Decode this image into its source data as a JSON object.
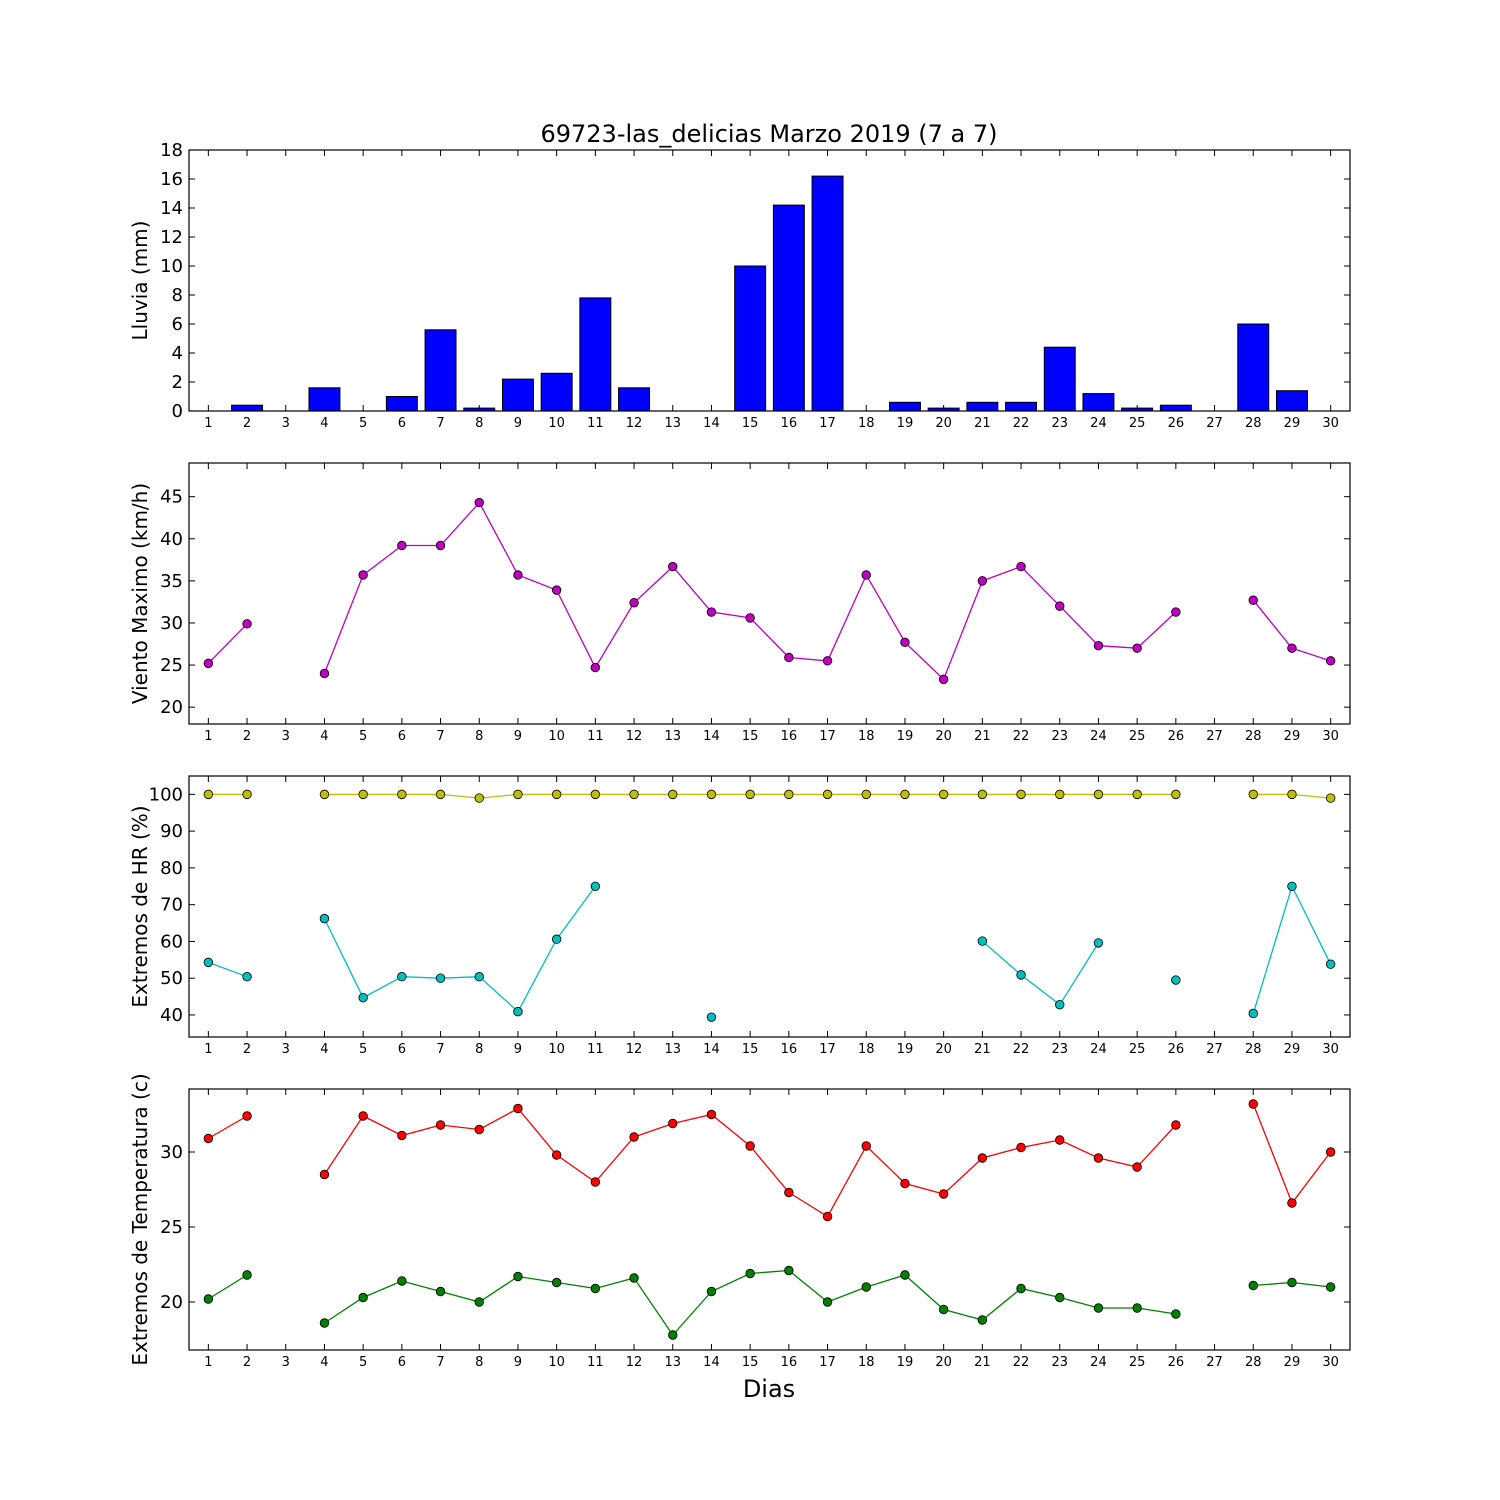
{
  "figure": {
    "title": "69723-las_delicias Marzo 2019  (7 a 7)",
    "xlabel": "Dias"
  },
  "x_ticks": [
    "1",
    "2",
    "3",
    "4",
    "5",
    "6",
    "7",
    "8",
    "9",
    "10",
    "11",
    "12",
    "13",
    "14",
    "15",
    "16",
    "17",
    "18",
    "19",
    "20",
    "21",
    "22",
    "23",
    "24",
    "25",
    "26",
    "27",
    "28",
    "29",
    "30"
  ],
  "chart_data": [
    {
      "type": "bar",
      "ylabel": "Lluvia (mm)",
      "ylim": [
        0,
        18
      ],
      "yticks": [
        0,
        2,
        4,
        6,
        8,
        10,
        12,
        14,
        16,
        18
      ],
      "xlim": [
        0.5,
        30.5
      ],
      "x": [
        1,
        2,
        3,
        4,
        5,
        6,
        7,
        8,
        9,
        10,
        11,
        12,
        13,
        14,
        15,
        16,
        17,
        18,
        19,
        20,
        21,
        22,
        23,
        24,
        25,
        26,
        27,
        28,
        29,
        30
      ],
      "values": [
        0,
        0.4,
        0,
        1.6,
        0,
        1.0,
        5.6,
        0.2,
        2.2,
        2.6,
        7.8,
        1.6,
        0,
        0,
        10.0,
        14.2,
        16.2,
        0,
        0.6,
        0.2,
        0.6,
        0.6,
        4.4,
        1.2,
        0.2,
        0.4,
        0,
        6.0,
        1.4,
        0
      ],
      "color": "#0000ff"
    },
    {
      "type": "line",
      "ylabel": "Viento Maximo (km/h)",
      "ylim": [
        18,
        49
      ],
      "yticks": [
        20,
        25,
        30,
        35,
        40,
        45
      ],
      "xlim": [
        0.5,
        30.5
      ],
      "x": [
        1,
        2,
        3,
        4,
        5,
        6,
        7,
        8,
        9,
        10,
        11,
        12,
        13,
        14,
        15,
        16,
        17,
        18,
        19,
        20,
        21,
        22,
        23,
        24,
        25,
        26,
        27,
        28,
        29,
        30
      ],
      "series": [
        {
          "color": "#bf00bf",
          "values": [
            25.2,
            29.9,
            null,
            24.0,
            35.7,
            39.2,
            39.2,
            44.3,
            35.7,
            33.9,
            24.7,
            32.4,
            36.7,
            31.3,
            30.6,
            25.9,
            25.5,
            35.7,
            27.7,
            23.3,
            35.0,
            36.7,
            32.0,
            27.3,
            27.0,
            31.3,
            null,
            32.7,
            27.0,
            25.5
          ]
        }
      ]
    },
    {
      "type": "line",
      "ylabel": "Extremos de HR (%)",
      "ylim": [
        34,
        105
      ],
      "yticks": [
        40,
        50,
        60,
        70,
        80,
        90,
        100
      ],
      "xlim": [
        0.5,
        30.5
      ],
      "x": [
        1,
        2,
        3,
        4,
        5,
        6,
        7,
        8,
        9,
        10,
        11,
        12,
        13,
        14,
        15,
        16,
        17,
        18,
        19,
        20,
        21,
        22,
        23,
        24,
        25,
        26,
        27,
        28,
        29,
        30
      ],
      "series": [
        {
          "color": "#bfbf00",
          "values": [
            100,
            100,
            null,
            100,
            100,
            100,
            100,
            99,
            100,
            100,
            100,
            100,
            100,
            100,
            100,
            100,
            100,
            100,
            100,
            100,
            100,
            100,
            100,
            100,
            100,
            100,
            null,
            100,
            100,
            99
          ]
        },
        {
          "color": "#00bfbf",
          "values": [
            54.3,
            50.4,
            null,
            66.2,
            44.7,
            50.4,
            50.0,
            50.4,
            40.9,
            60.6,
            75.0,
            null,
            null,
            39.4,
            null,
            null,
            null,
            null,
            null,
            null,
            60.1,
            50.9,
            42.8,
            59.6,
            null,
            49.5,
            null,
            40.4,
            75.0,
            53.8
          ]
        }
      ]
    },
    {
      "type": "line",
      "ylabel": "Extremos de Temperatura (c)",
      "ylim": [
        16.8,
        34.2
      ],
      "yticks": [
        20,
        25,
        30
      ],
      "xlim": [
        0.5,
        30.5
      ],
      "x": [
        1,
        2,
        3,
        4,
        5,
        6,
        7,
        8,
        9,
        10,
        11,
        12,
        13,
        14,
        15,
        16,
        17,
        18,
        19,
        20,
        21,
        22,
        23,
        24,
        25,
        26,
        27,
        28,
        29,
        30
      ],
      "series": [
        {
          "color": "#ff0000",
          "values": [
            30.9,
            32.4,
            null,
            28.5,
            32.4,
            31.1,
            31.8,
            31.5,
            32.9,
            29.8,
            28.0,
            31.0,
            31.9,
            32.5,
            30.4,
            27.3,
            25.7,
            30.4,
            27.9,
            27.2,
            29.6,
            30.3,
            30.8,
            29.6,
            29.0,
            31.8,
            null,
            33.2,
            26.6,
            30.0
          ]
        },
        {
          "color": "#008000",
          "values": [
            20.2,
            21.8,
            null,
            18.6,
            20.3,
            21.4,
            20.7,
            20.0,
            21.7,
            21.3,
            20.9,
            21.6,
            17.8,
            20.7,
            21.9,
            22.1,
            20.0,
            21.0,
            21.8,
            19.5,
            18.8,
            20.9,
            20.3,
            19.6,
            19.6,
            19.2,
            null,
            21.1,
            21.3,
            21.0
          ]
        }
      ]
    }
  ]
}
